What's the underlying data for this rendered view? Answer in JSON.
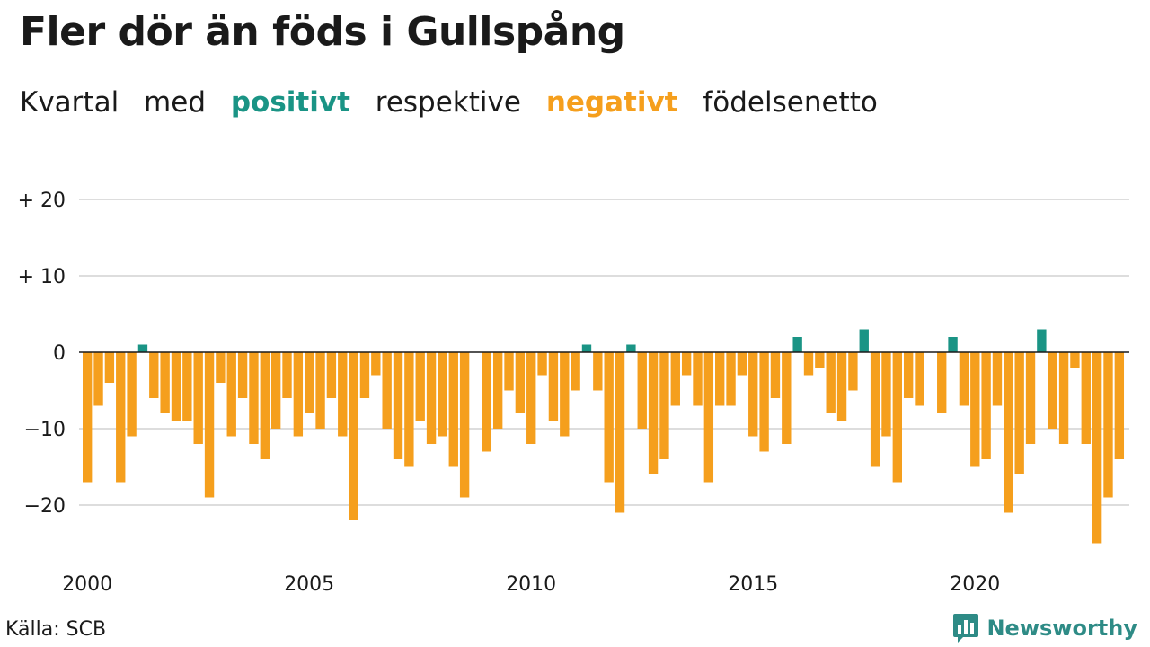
{
  "title": "Fler dör än föds i Gullspång",
  "subtitle": {
    "part1": "Kvartal",
    "part2": "med",
    "positive_word": "positivt",
    "part3": "respektive",
    "negative_word": "negativt",
    "part4": "födelsenetto"
  },
  "colors": {
    "positive": "#1a9485",
    "negative": "#f59f1d",
    "grid": "#dddddd",
    "text": "#1a1a1a",
    "brand": "#2e8b86"
  },
  "source": "Källa: SCB",
  "brand": {
    "name": "Newsworthy",
    "icon": "bar-chart-speech-icon"
  },
  "chart_data": {
    "type": "bar",
    "title": "Fler dör än föds i Gullspång",
    "subtitle": "Kvartal med positivt respektive negativt födelsenetto",
    "xlabel": "",
    "ylabel": "",
    "ylim": [
      -27,
      22
    ],
    "y_ticks": [
      20,
      10,
      0,
      -10,
      -20
    ],
    "y_tick_labels": [
      "+ 20",
      "+ 10",
      "0",
      "−10",
      "−20"
    ],
    "x_ticks": [
      "2000",
      "2005",
      "2010",
      "2015",
      "2020"
    ],
    "start": "2000 Q1",
    "grid": true,
    "values": [
      -17,
      -7,
      -4,
      -17,
      -11,
      1,
      -6,
      -8,
      -9,
      -9,
      -12,
      -19,
      -4,
      -11,
      -6,
      -12,
      -14,
      -10,
      -6,
      -11,
      -8,
      -10,
      -6,
      -11,
      -22,
      -6,
      -3,
      -10,
      -14,
      -15,
      -9,
      -12,
      -11,
      -15,
      -19,
      0,
      -13,
      -10,
      -5,
      -8,
      -12,
      -3,
      -9,
      -11,
      -5,
      1,
      -5,
      -17,
      -21,
      1,
      -10,
      -16,
      -14,
      -7,
      -3,
      -7,
      -17,
      -7,
      -7,
      -3,
      -11,
      -13,
      -6,
      -12,
      2,
      -3,
      -2,
      -8,
      -9,
      -5,
      3,
      -15,
      -11,
      -17,
      -6,
      -7,
      0,
      -8,
      2,
      -7,
      -15,
      -14,
      -7,
      -21,
      -16,
      -12,
      3,
      -10,
      -12,
      -2,
      -12,
      -25,
      -19,
      -14
    ]
  }
}
